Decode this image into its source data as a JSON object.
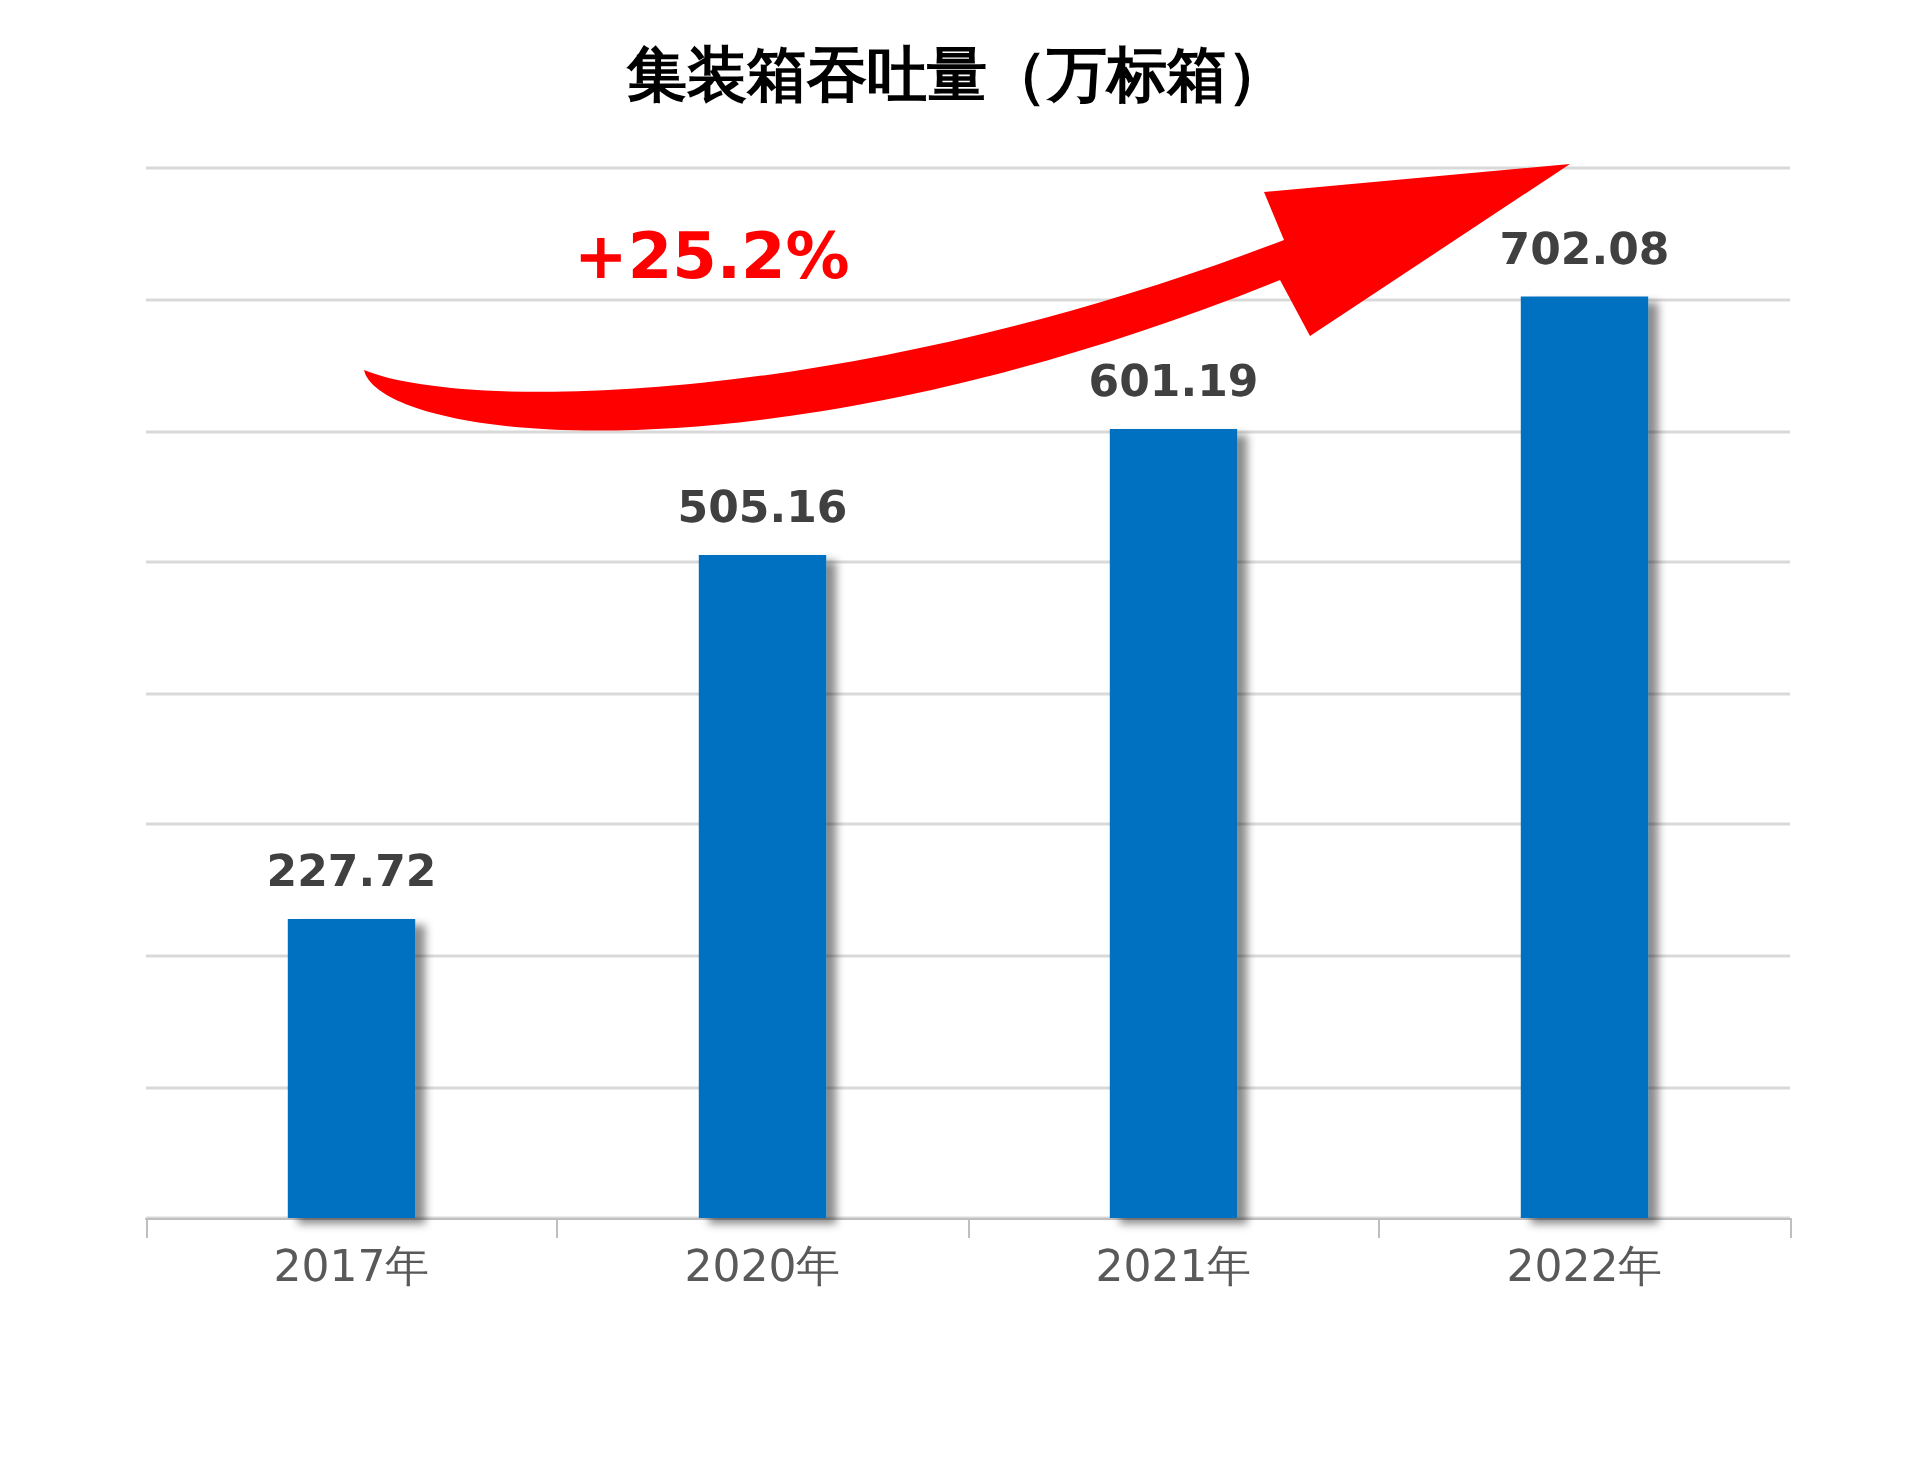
{
  "chart_data": {
    "type": "bar",
    "title": "集装箱吞吐量（万标箱）",
    "categories": [
      "2017年",
      "2020年",
      "2021年",
      "2022年"
    ],
    "values": [
      227.72,
      505.16,
      601.19,
      702.08
    ],
    "color": "#0070c0",
    "ylim": [
      0,
      800
    ],
    "yticks": [
      {
        "value": 0,
        "label": null
      },
      {
        "value": 100,
        "label": null
      },
      {
        "value": 200,
        "label": null
      },
      {
        "value": 300,
        "label": null
      },
      {
        "value": 400,
        "label": null
      },
      {
        "value": 500,
        "label": null
      },
      {
        "value": 600,
        "label": null
      },
      {
        "value": 700,
        "label": null
      },
      {
        "value": 800,
        "label": null
      }
    ],
    "tick_labels": "x",
    "grid": "y",
    "data_labels": true,
    "annotations": [
      "+25.2%"
    ]
  }
}
